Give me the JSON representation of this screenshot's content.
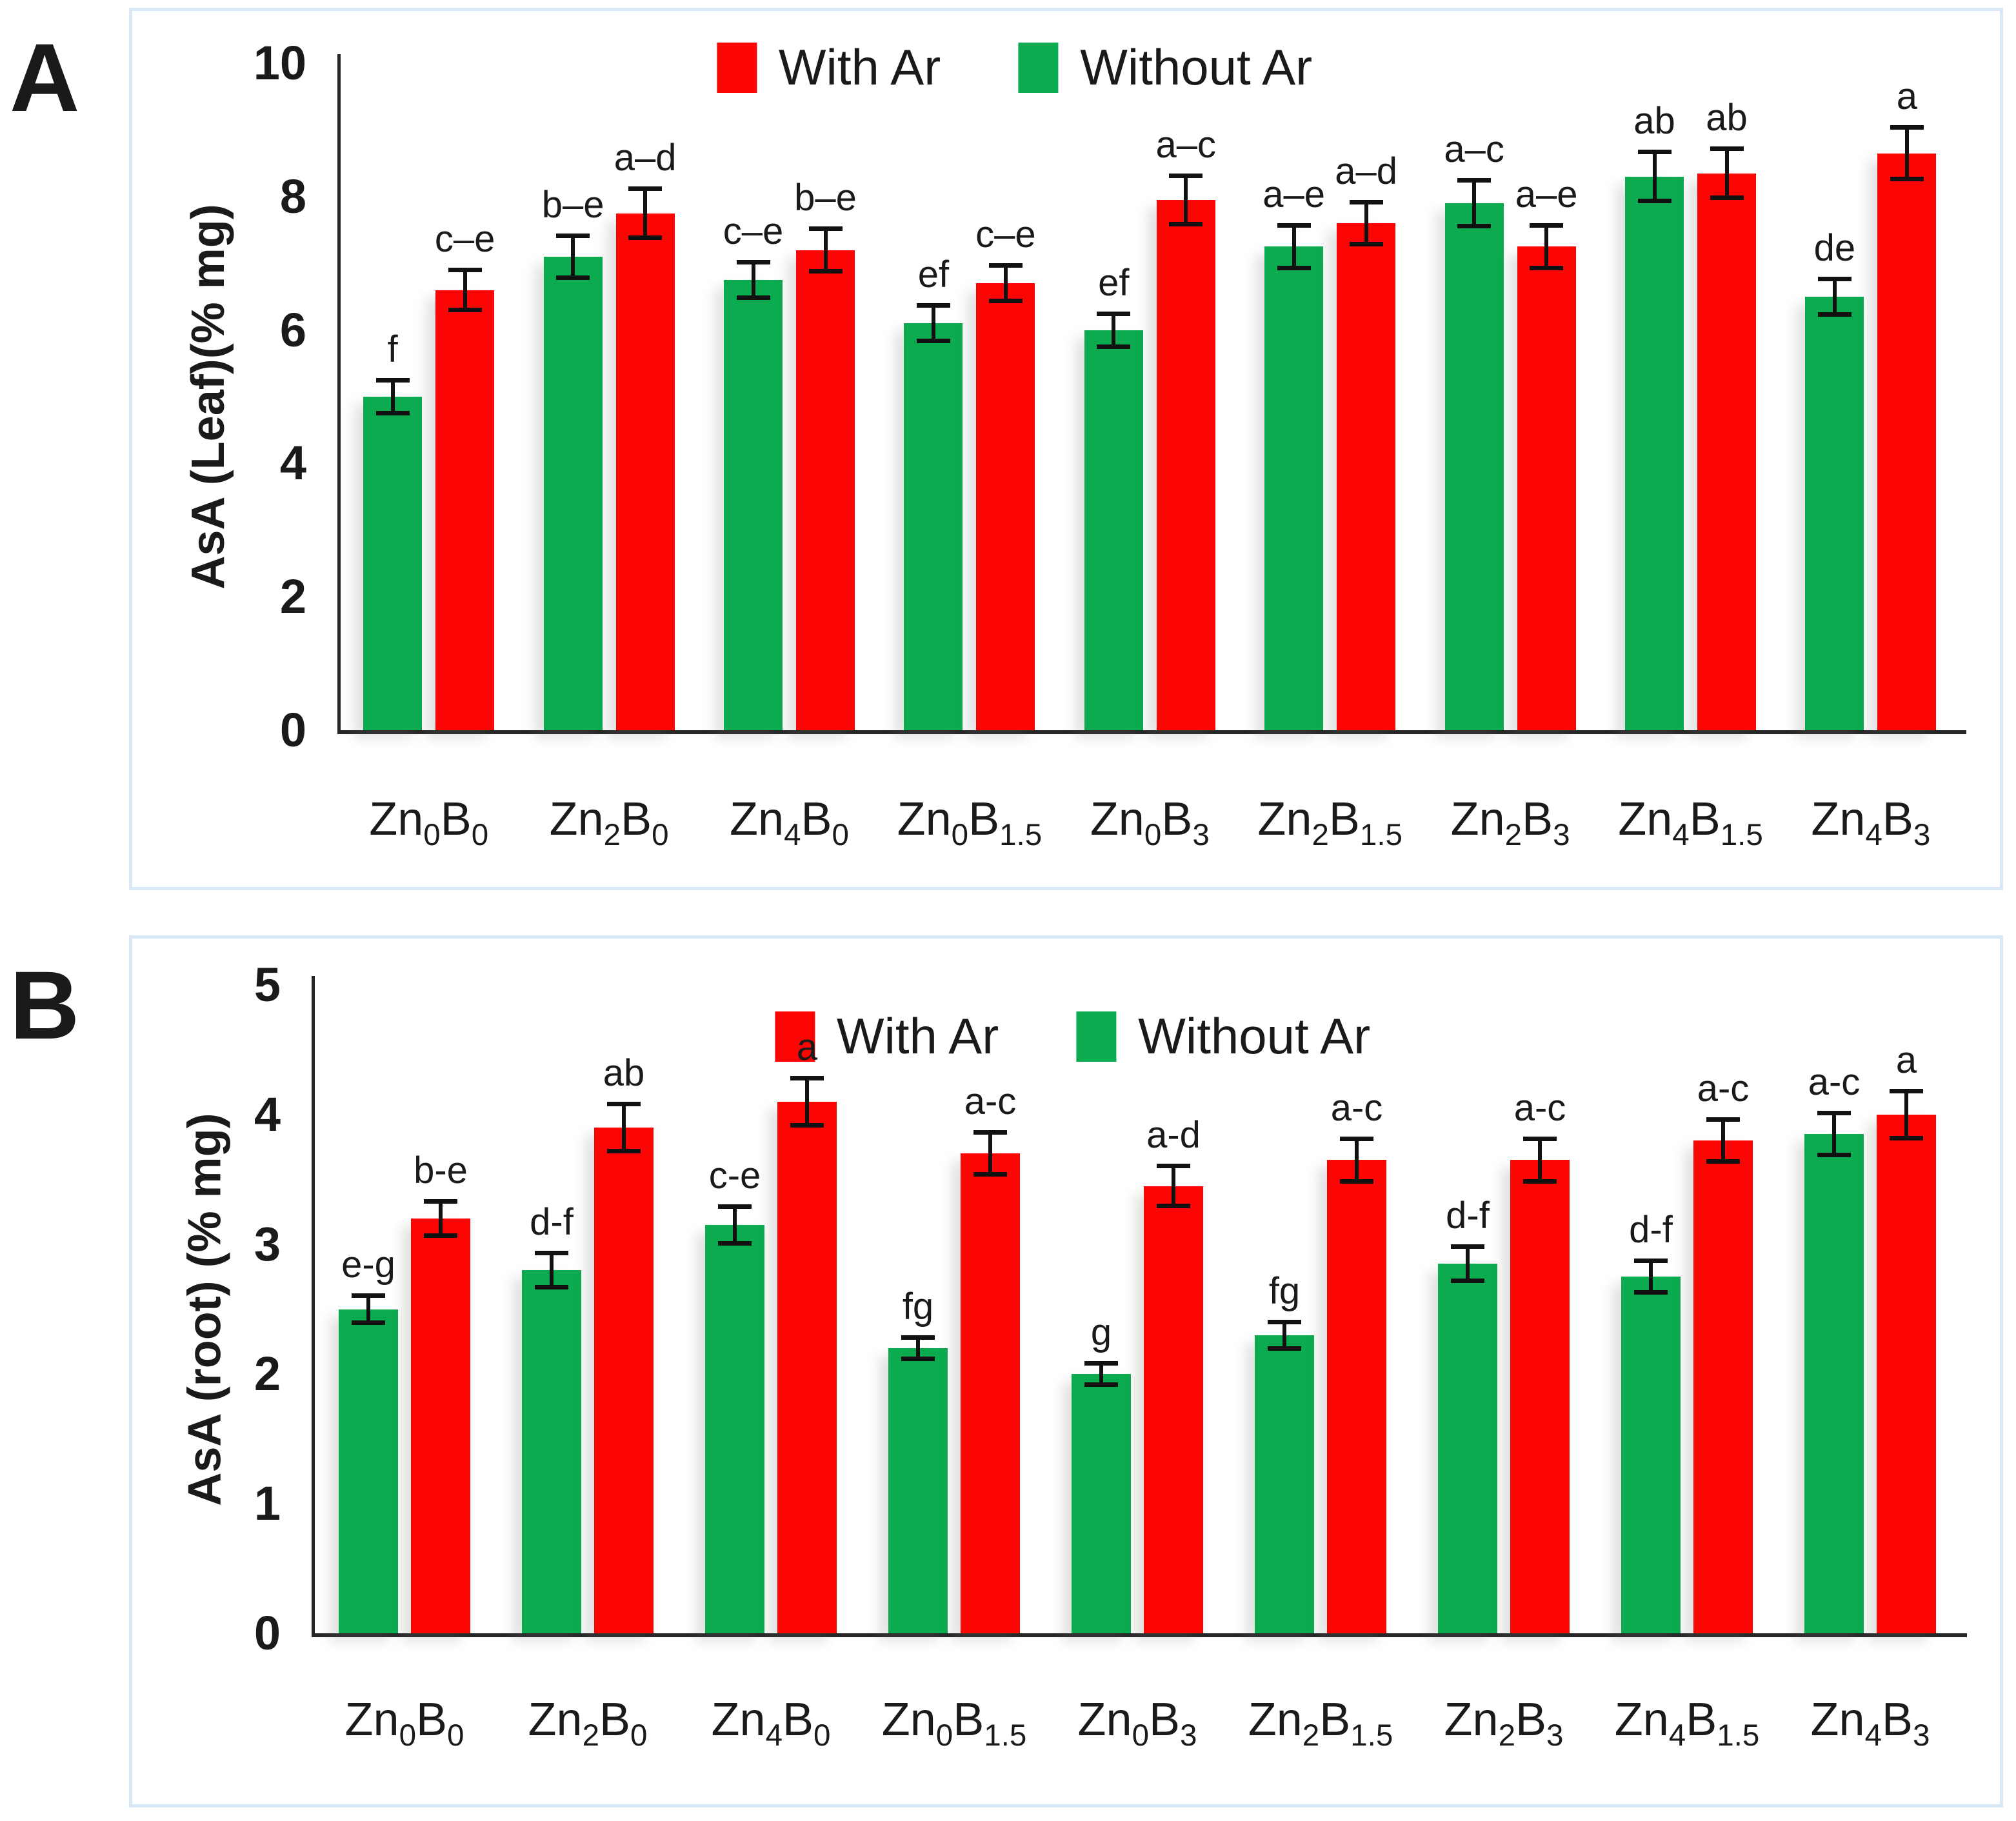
{
  "legend": {
    "entries": [
      {
        "label": "With Ar",
        "color_key": "with_ar"
      },
      {
        "label": "Without Ar",
        "color_key": "without_ar"
      }
    ]
  },
  "colors": {
    "with_ar": "#fb0505",
    "without_ar": "#0cab4f",
    "error_bar": "#111111",
    "axis": "#262626",
    "panel_border": "#d9e8f6",
    "text": "#1a1a1a"
  },
  "chart_data": [
    {
      "type": "bar",
      "panel_letter": "A",
      "title": "",
      "xlabel": "",
      "ylabel": "AsA (Leaf)(% mg)",
      "ylim": [
        0,
        10
      ],
      "yticks": [
        0,
        2,
        4,
        6,
        8,
        10
      ],
      "grid": false,
      "legend_position": "top-center",
      "legend_labels": [
        "With Ar",
        "Without Ar"
      ],
      "categories": [
        "Zn0B0",
        "Zn2B0",
        "Zn4B0",
        "Zn0B1.5",
        "Zn0B3",
        "Zn2B1.5",
        "Zn2B3",
        "Zn4B1.5",
        "Zn4B3"
      ],
      "categories_rich": [
        [
          [
            "Zn",
            false
          ],
          [
            "0",
            true
          ],
          [
            "B",
            false
          ],
          [
            "0",
            true
          ]
        ],
        [
          [
            "Zn",
            false
          ],
          [
            "2",
            true
          ],
          [
            "B",
            false
          ],
          [
            "0",
            true
          ]
        ],
        [
          [
            "Zn",
            false
          ],
          [
            "4",
            true
          ],
          [
            "B",
            false
          ],
          [
            "0",
            true
          ]
        ],
        [
          [
            "Zn",
            false
          ],
          [
            "0",
            true
          ],
          [
            "B",
            false
          ],
          [
            "1.5",
            true
          ]
        ],
        [
          [
            "Zn",
            false
          ],
          [
            "0",
            true
          ],
          [
            "B",
            false
          ],
          [
            "3",
            true
          ]
        ],
        [
          [
            "Zn",
            false
          ],
          [
            "2",
            true
          ],
          [
            "B",
            false
          ],
          [
            "1.5",
            true
          ]
        ],
        [
          [
            "Zn",
            false
          ],
          [
            "2",
            true
          ],
          [
            "B",
            false
          ],
          [
            "3",
            true
          ]
        ],
        [
          [
            "Zn",
            false
          ],
          [
            "4",
            true
          ],
          [
            "B",
            false
          ],
          [
            "1.5",
            true
          ]
        ],
        [
          [
            "Zn",
            false
          ],
          [
            "4",
            true
          ],
          [
            "B",
            false
          ],
          [
            "3",
            true
          ]
        ]
      ],
      "series": [
        {
          "name": "Without Ar",
          "color_key": "without_ar",
          "values": [
            5.0,
            7.1,
            6.75,
            6.1,
            6.0,
            7.25,
            7.9,
            8.3,
            6.5
          ],
          "errors": [
            0.28,
            0.35,
            0.3,
            0.3,
            0.28,
            0.35,
            0.38,
            0.4,
            0.3
          ],
          "letters": [
            "f",
            "b–e",
            "c–e",
            "ef",
            "ef",
            "a–e",
            "a–c",
            "ab",
            "de"
          ]
        },
        {
          "name": "With Ar",
          "color_key": "with_ar",
          "values": [
            6.6,
            7.75,
            7.2,
            6.7,
            7.95,
            7.6,
            7.25,
            8.35,
            8.65
          ],
          "errors": [
            0.33,
            0.4,
            0.35,
            0.3,
            0.4,
            0.35,
            0.35,
            0.4,
            0.42
          ],
          "letters": [
            "c–e",
            "a–d",
            "b–e",
            "c–e",
            "a–c",
            "a–d",
            "a–e",
            "ab",
            "a"
          ]
        }
      ]
    },
    {
      "type": "bar",
      "panel_letter": "B",
      "title": "",
      "xlabel": "",
      "ylabel": "AsA (root) (% mg)",
      "ylim": [
        0,
        5
      ],
      "yticks": [
        0,
        1,
        2,
        3,
        4,
        5
      ],
      "grid": false,
      "legend_position": "top-center",
      "legend_labels": [
        "With Ar",
        "Without Ar"
      ],
      "categories": [
        "Zn0B0",
        "Zn2B0",
        "Zn4B0",
        "Zn0B1.5",
        "Zn0B3",
        "Zn2B1.5",
        "Zn2B3",
        "Zn4B1.5",
        "Zn4B3"
      ],
      "categories_rich": [
        [
          [
            "Zn",
            false
          ],
          [
            "0",
            true
          ],
          [
            "B",
            false
          ],
          [
            "0",
            true
          ]
        ],
        [
          [
            "Zn",
            false
          ],
          [
            "2",
            true
          ],
          [
            "B",
            false
          ],
          [
            "0",
            true
          ]
        ],
        [
          [
            "Zn",
            false
          ],
          [
            "4",
            true
          ],
          [
            "B",
            false
          ],
          [
            "0",
            true
          ]
        ],
        [
          [
            "Zn",
            false
          ],
          [
            "0",
            true
          ],
          [
            "B",
            false
          ],
          [
            "1.5",
            true
          ]
        ],
        [
          [
            "Zn",
            false
          ],
          [
            "0",
            true
          ],
          [
            "B",
            false
          ],
          [
            "3",
            true
          ]
        ],
        [
          [
            "Zn",
            false
          ],
          [
            "2",
            true
          ],
          [
            "B",
            false
          ],
          [
            "1.5",
            true
          ]
        ],
        [
          [
            "Zn",
            false
          ],
          [
            "2",
            true
          ],
          [
            "B",
            false
          ],
          [
            "3",
            true
          ]
        ],
        [
          [
            "Zn",
            false
          ],
          [
            "4",
            true
          ],
          [
            "B",
            false
          ],
          [
            "1.5",
            true
          ]
        ],
        [
          [
            "Zn",
            false
          ],
          [
            "4",
            true
          ],
          [
            "B",
            false
          ],
          [
            "3",
            true
          ]
        ]
      ],
      "series": [
        {
          "name": "Without Ar",
          "color_key": "without_ar",
          "values": [
            2.5,
            2.8,
            3.15,
            2.2,
            2.0,
            2.3,
            2.85,
            2.75,
            3.85
          ],
          "errors": [
            0.12,
            0.15,
            0.16,
            0.1,
            0.1,
            0.12,
            0.15,
            0.14,
            0.18
          ],
          "letters": [
            "e-g",
            "d-f",
            "c-e",
            "fg",
            "g",
            "fg",
            "d-f",
            "d-f",
            "a-c"
          ]
        },
        {
          "name": "With Ar",
          "color_key": "with_ar",
          "values": [
            3.2,
            3.9,
            4.1,
            3.7,
            3.45,
            3.65,
            3.65,
            3.8,
            4.0
          ],
          "errors": [
            0.15,
            0.2,
            0.2,
            0.18,
            0.17,
            0.18,
            0.18,
            0.18,
            0.2
          ],
          "letters": [
            "b-e",
            "ab",
            "a",
            "a-c",
            "a-d",
            "a-c",
            "a-c",
            "a-c",
            "a"
          ]
        }
      ]
    }
  ]
}
